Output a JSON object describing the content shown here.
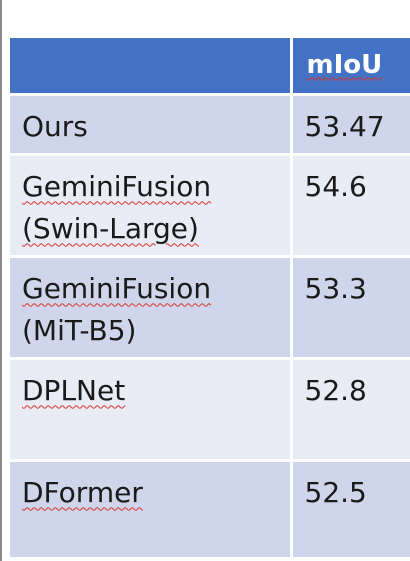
{
  "table": {
    "headers": [
      "",
      "mIoU"
    ],
    "rows": [
      {
        "method_lines": [
          "Ours"
        ],
        "miou": "53.47"
      },
      {
        "method_lines": [
          "GeminiFusion",
          "(Swin-Large)"
        ],
        "miou": "54.6"
      },
      {
        "method_lines": [
          "GeminiFusion",
          "(MiT-B5)"
        ],
        "miou": "53.3"
      },
      {
        "method_lines": [
          "DPLNet"
        ],
        "miou": "52.8"
      },
      {
        "method_lines": [
          "DFormer"
        ],
        "miou": "52.5"
      }
    ]
  }
}
